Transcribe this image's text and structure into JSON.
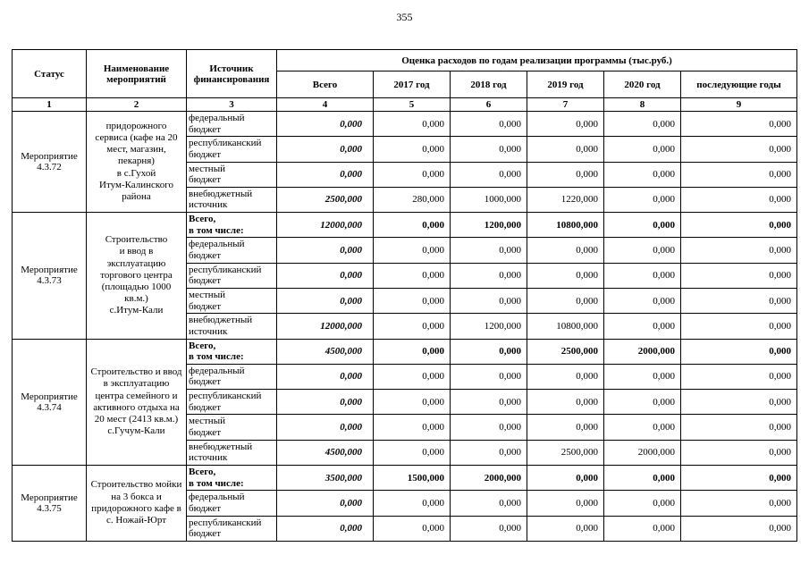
{
  "page": {
    "number": "355"
  },
  "table": {
    "headers": {
      "status": "Статус",
      "name": "Наименование\nмероприятий",
      "source": "Источник\nфинансирования",
      "group": "Оценка расходов по годам реализации  программы (тыс.руб.)",
      "cols": [
        "Всего",
        "2017 год",
        "2018 год",
        "2019 год",
        "2020 год",
        "последующие годы"
      ],
      "col_numbers": [
        "1",
        "2",
        "3",
        "4",
        "5",
        "6",
        "7",
        "8",
        "9"
      ]
    },
    "blocks": [
      {
        "status": "Мероприятие\n4.3.72",
        "name": "придорожного\nсервиса (кафе на 20\nмест, магазин,\nпекарня)\nв с.Гухой\nИтум-Калинского\nрайона",
        "rows": [
          {
            "source": "федеральный\nбюджет",
            "bold": false,
            "values": [
              "0,000",
              "0,000",
              "0,000",
              "0,000",
              "0,000",
              "0,000"
            ]
          },
          {
            "source": "республиканский\nбюджет",
            "bold": false,
            "values": [
              "0,000",
              "0,000",
              "0,000",
              "0,000",
              "0,000",
              "0,000"
            ]
          },
          {
            "source": "местный\nбюджет",
            "bold": false,
            "values": [
              "0,000",
              "0,000",
              "0,000",
              "0,000",
              "0,000",
              "0,000"
            ]
          },
          {
            "source": "внебюджетный\nисточник",
            "bold": false,
            "values": [
              "2500,000",
              "280,000",
              "1000,000",
              "1220,000",
              "0,000",
              "0,000"
            ]
          }
        ]
      },
      {
        "status": "Мероприятие\n4.3.73",
        "name": "Строительство\nи ввод в\nэксплуатацию\nторгового центра\n(площадью 1000\nкв.м.)\nс.Итум-Кали",
        "rows": [
          {
            "source": "Всего,\nв том числе:",
            "bold": true,
            "values": [
              "12000,000",
              "0,000",
              "1200,000",
              "10800,000",
              "0,000",
              "0,000"
            ]
          },
          {
            "source": "федеральный\nбюджет",
            "bold": false,
            "values": [
              "0,000",
              "0,000",
              "0,000",
              "0,000",
              "0,000",
              "0,000"
            ]
          },
          {
            "source": "республиканский\nбюджет",
            "bold": false,
            "values": [
              "0,000",
              "0,000",
              "0,000",
              "0,000",
              "0,000",
              "0,000"
            ]
          },
          {
            "source": "местный\nбюджет",
            "bold": false,
            "values": [
              "0,000",
              "0,000",
              "0,000",
              "0,000",
              "0,000",
              "0,000"
            ]
          },
          {
            "source": "внебюджетный\nисточник",
            "bold": false,
            "values": [
              "12000,000",
              "0,000",
              "1200,000",
              "10800,000",
              "0,000",
              "0,000"
            ]
          }
        ]
      },
      {
        "status": "Мероприятие\n4.3.74",
        "name": "Строительство и ввод\nв эксплуатацию\nцентра семейного и\nактивного отдыха на\n20 мест (2413 кв.м.)\nс.Гучум-Кали",
        "rows": [
          {
            "source": "Всего,\nв том числе:",
            "bold": true,
            "values": [
              "4500,000",
              "0,000",
              "0,000",
              "2500,000",
              "2000,000",
              "0,000"
            ]
          },
          {
            "source": "федеральный\nбюджет",
            "bold": false,
            "values": [
              "0,000",
              "0,000",
              "0,000",
              "0,000",
              "0,000",
              "0,000"
            ]
          },
          {
            "source": "республиканский\nбюджет",
            "bold": false,
            "values": [
              "0,000",
              "0,000",
              "0,000",
              "0,000",
              "0,000",
              "0,000"
            ]
          },
          {
            "source": "местный\nбюджет",
            "bold": false,
            "values": [
              "0,000",
              "0,000",
              "0,000",
              "0,000",
              "0,000",
              "0,000"
            ]
          },
          {
            "source": "внебюджетный\nисточник",
            "bold": false,
            "values": [
              "4500,000",
              "0,000",
              "0,000",
              "2500,000",
              "2000,000",
              "0,000"
            ]
          }
        ]
      },
      {
        "status": "Мероприятие\n4.3.75",
        "name": "Строительство мойки\nна 3 бокса и\nпридорожного кафе в\nс. Ножай-Юрт",
        "rows": [
          {
            "source": "Всего,\nв том числе:",
            "bold": true,
            "values": [
              "3500,000",
              "1500,000",
              "2000,000",
              "0,000",
              "0,000",
              "0,000"
            ]
          },
          {
            "source": "федеральный\nбюджет",
            "bold": false,
            "values": [
              "0,000",
              "0,000",
              "0,000",
              "0,000",
              "0,000",
              "0,000"
            ]
          },
          {
            "source": "республиканский\nбюджет",
            "bold": false,
            "values": [
              "0,000",
              "0,000",
              "0,000",
              "0,000",
              "0,000",
              "0,000"
            ]
          }
        ]
      }
    ]
  }
}
